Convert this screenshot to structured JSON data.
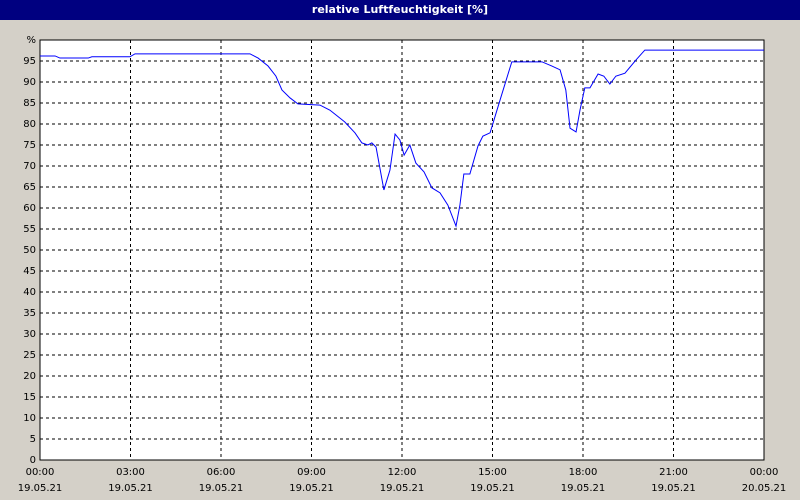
{
  "chart_data": {
    "type": "line",
    "title": "relative Luftfeuchtigkeit [%]",
    "x": [
      0,
      0.5,
      0.66,
      1.6,
      1.72,
      2.98,
      3.15,
      6.96,
      7.23,
      7.56,
      7.82,
      8.02,
      8.29,
      8.55,
      9.28,
      9.61,
      10.1,
      10.44,
      10.67,
      10.87,
      11.0,
      11.14,
      11.4,
      11.6,
      11.77,
      11.93,
      12.07,
      12.26,
      12.46,
      12.73,
      12.99,
      13.26,
      13.52,
      13.79,
      13.92,
      14.05,
      14.25,
      14.52,
      14.68,
      14.92,
      15.25,
      15.64,
      16.64,
      16.97,
      17.24,
      17.43,
      17.57,
      17.77,
      17.9,
      18.06,
      18.23,
      18.5,
      18.69,
      18.89,
      19.09,
      19.39,
      19.75,
      20.05,
      24
    ],
    "series": [
      {
        "name": "relative Luftfeuchtigkeit",
        "color": "#0000ff",
        "values": [
          96.2,
          96.2,
          95.7,
          95.7,
          96,
          96,
          96.7,
          96.7,
          95.7,
          93.8,
          91.4,
          88.1,
          86.2,
          84.8,
          84.5,
          83.3,
          80.5,
          77.9,
          75.5,
          75,
          75.5,
          74.5,
          64.3,
          69,
          77.6,
          76.2,
          72.6,
          75,
          70.7,
          68.6,
          64.8,
          63.6,
          60.7,
          55.7,
          60.7,
          68.1,
          68.1,
          74.8,
          77.1,
          77.9,
          85.7,
          94.8,
          94.8,
          93.8,
          92.9,
          88.1,
          79,
          78.1,
          83.3,
          88.6,
          88.6,
          91.9,
          91.4,
          89.5,
          91.4,
          92.1,
          95.2,
          97.6,
          97.6
        ]
      }
    ],
    "xlim": [
      0,
      24
    ],
    "xticks": [
      {
        "value": 0,
        "label": "00:00\n19.05.21"
      },
      {
        "value": 3,
        "label": "03:00\n19.05.21"
      },
      {
        "value": 6,
        "label": "06:00\n19.05.21"
      },
      {
        "value": 9,
        "label": "09:00\n19.05.21"
      },
      {
        "value": 12,
        "label": "12:00\n19.05.21"
      },
      {
        "value": 15,
        "label": "15:00\n19.05.21"
      },
      {
        "value": 18,
        "label": "18:00\n19.05.21"
      },
      {
        "value": 21,
        "label": "21:00\n19.05.21"
      },
      {
        "value": 24,
        "label": "00:00\n20.05.21"
      }
    ],
    "ylim": [
      0,
      100
    ],
    "yticks": [
      0,
      5,
      10,
      15,
      20,
      25,
      30,
      35,
      40,
      45,
      50,
      55,
      60,
      65,
      70,
      75,
      80,
      85,
      90,
      95,
      {
        "value": 100,
        "label": "%"
      }
    ],
    "grid": true
  }
}
